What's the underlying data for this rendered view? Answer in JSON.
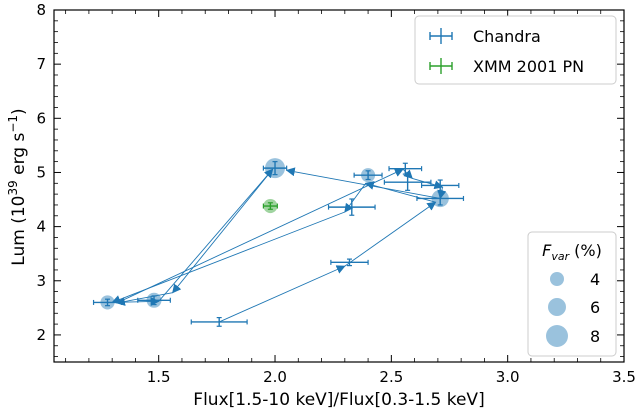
{
  "chart_data": {
    "type": "scatter",
    "xlabel": "Flux[1.5-10 keV]/Flux[0.3-1.5 keV]",
    "ylabel": {
      "prefix": "Lum (10",
      "exp1": "39",
      "mid": " erg s",
      "exp2": "−1",
      "suffix": ")"
    },
    "xlim": [
      1.05,
      3.5
    ],
    "ylim": [
      1.5,
      8.0
    ],
    "xticks": [
      1.5,
      2.0,
      2.5,
      3.0,
      3.5
    ],
    "xtick_labels": [
      "1.5",
      "2.0",
      "2.5",
      "3.0",
      "3.5"
    ],
    "yticks": [
      2,
      3,
      4,
      5,
      6,
      7,
      8
    ],
    "ytick_labels": [
      "2",
      "3",
      "4",
      "5",
      "6",
      "7",
      "8"
    ],
    "grid": false,
    "legend": {
      "placement": "top-right",
      "entries": [
        {
          "label": "Chandra",
          "color": "#1f77b4"
        },
        {
          "label": "XMM 2001 PN",
          "color": "#2ca02c"
        }
      ]
    },
    "size_legend": {
      "placement": "bottom-right",
      "title_var": "F",
      "title_sub": "var",
      "title_unit": " (%)",
      "entries": [
        {
          "label": "4",
          "value": 4
        },
        {
          "label": "6",
          "value": 6
        },
        {
          "label": "8",
          "value": 8
        }
      ]
    },
    "series": [
      {
        "name": "Chandra",
        "color": "#1f77b4",
        "points": [
          {
            "x": 1.76,
            "xerr": 0.12,
            "y": 2.24,
            "yerr": 0.08
          },
          {
            "x": 2.32,
            "xerr": 0.08,
            "y": 3.34,
            "yerr": 0.06
          },
          {
            "x": 2.71,
            "xerr": 0.1,
            "y": 4.52,
            "yerr": 0.12
          },
          {
            "x": 2.4,
            "xerr": 0.06,
            "y": 4.95,
            "yerr": 0.08
          },
          {
            "x": 2.33,
            "xerr": 0.1,
            "y": 4.36,
            "yerr": 0.15
          },
          {
            "x": 1.28,
            "xerr": 0.06,
            "y": 2.6,
            "yerr": 0.06
          },
          {
            "x": 1.48,
            "xerr": 0.07,
            "y": 2.64,
            "yerr": 0.08
          },
          {
            "x": 2.0,
            "xerr": 0.05,
            "y": 5.08,
            "yerr": 0.12
          },
          {
            "x": 2.56,
            "xerr": 0.07,
            "y": 5.07,
            "yerr": 0.1
          },
          {
            "x": 2.57,
            "xerr": 0.1,
            "y": 4.82,
            "yerr": 0.15
          },
          {
            "x": 2.71,
            "xerr": 0.08,
            "y": 4.76,
            "yerr": 0.1
          }
        ]
      },
      {
        "name": "XMM 2001 PN",
        "color": "#2ca02c",
        "points": [
          {
            "x": 1.98,
            "xerr": 0.03,
            "y": 4.38,
            "yerr": 0.06
          }
        ]
      }
    ],
    "fvar_points": [
      {
        "x": 1.28,
        "y": 2.6,
        "fvar": 4
      },
      {
        "x": 1.48,
        "y": 2.64,
        "fvar": 4.5
      },
      {
        "x": 2.4,
        "y": 4.95,
        "fvar": 4
      },
      {
        "x": 2.0,
        "y": 5.08,
        "fvar": 8
      },
      {
        "x": 2.71,
        "y": 4.52,
        "fvar": 6
      },
      {
        "x": 1.98,
        "y": 4.38,
        "fvar": 4,
        "color": "#2ca02c"
      }
    ],
    "fvar_color": "#1f77b4",
    "path": [
      [
        1.76,
        2.24
      ],
      [
        2.3,
        3.27
      ],
      [
        2.69,
        4.45
      ],
      [
        2.39,
        4.8
      ],
      [
        2.3,
        4.27
      ],
      [
        1.3,
        2.6
      ],
      [
        1.5,
        2.62
      ],
      [
        1.99,
        5.06
      ],
      [
        1.56,
        2.78
      ],
      [
        1.32,
        2.59
      ],
      [
        2.55,
        5.06
      ],
      [
        2.59,
        4.89
      ],
      [
        2.72,
        4.73
      ],
      [
        2.71,
        4.52
      ],
      [
        2.05,
        5.04
      ]
    ]
  }
}
